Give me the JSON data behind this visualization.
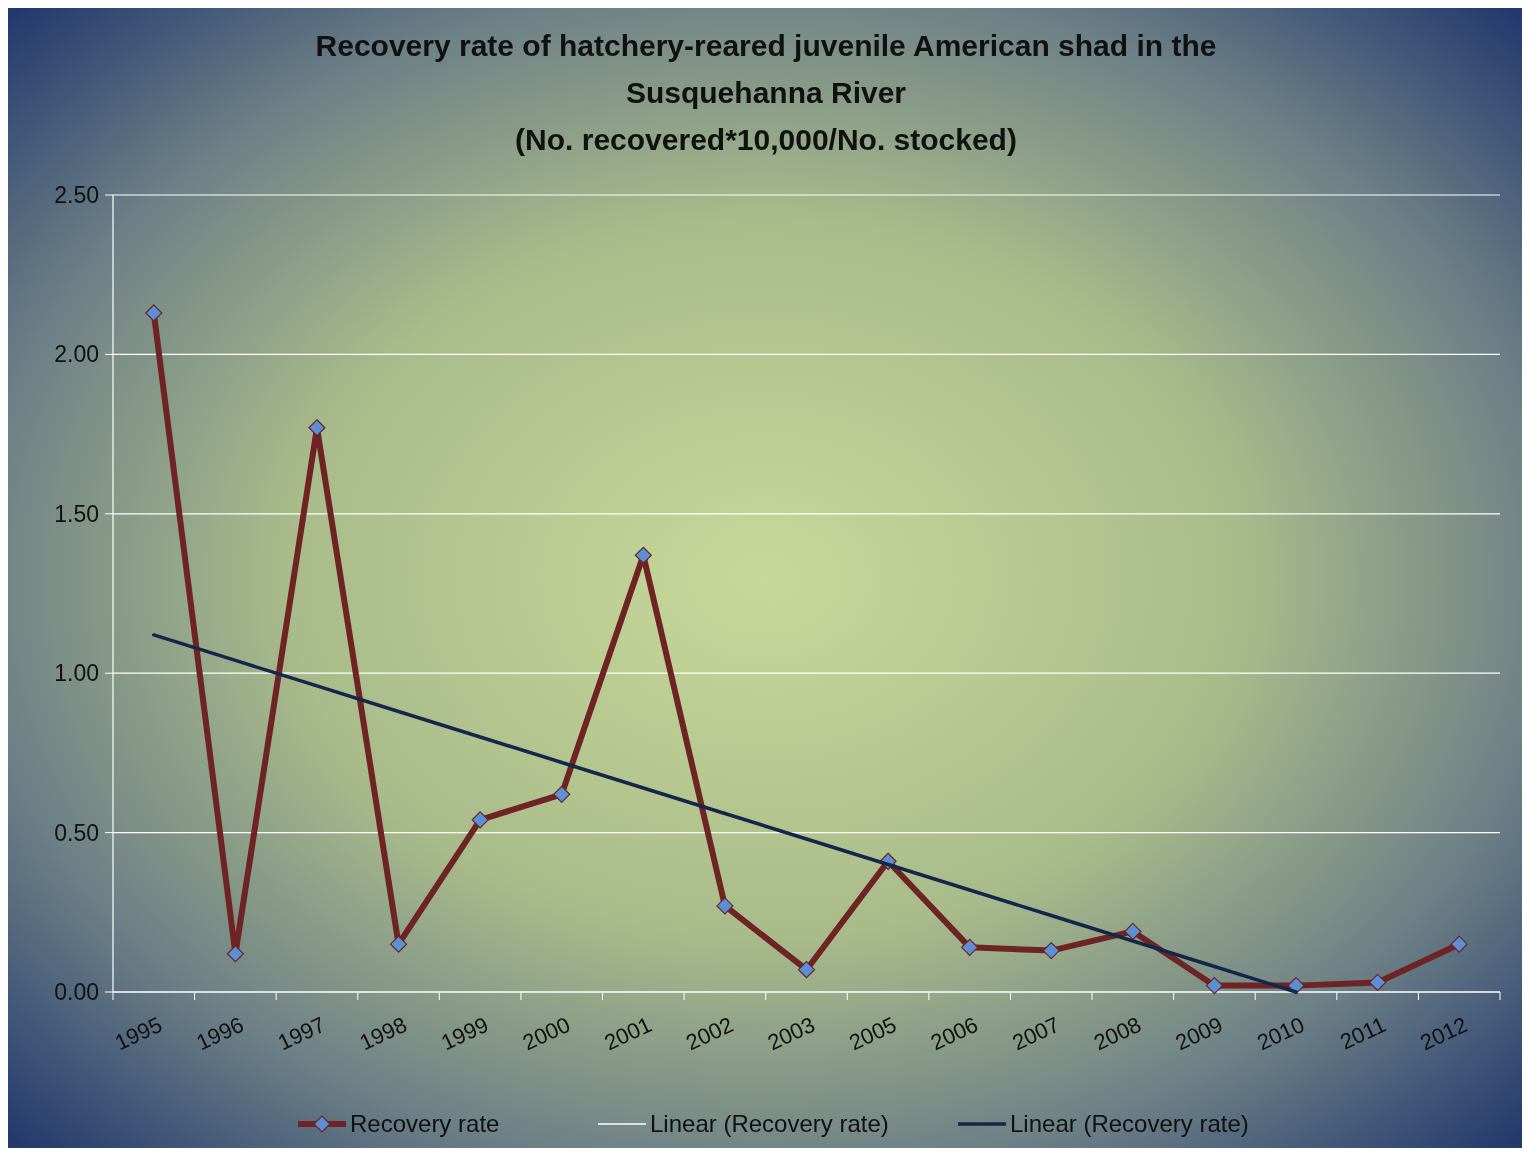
{
  "chart_data": {
    "type": "line",
    "title": "Recovery rate of hatchery-reared juvenile American shad in the Susquehanna River",
    "subtitle": "(No. recovered*10,000/No. stocked)",
    "categories": [
      "1995",
      "1996",
      "1997",
      "1998",
      "1999",
      "2000",
      "2001",
      "2002",
      "2003",
      "2005",
      "2006",
      "2007",
      "2008",
      "2009",
      "2010",
      "2011",
      "2012"
    ],
    "series": [
      {
        "name": "Recovery rate",
        "color": "#6e2424",
        "marker": "diamond",
        "values": [
          2.13,
          0.12,
          1.77,
          0.15,
          0.54,
          0.62,
          1.37,
          0.27,
          0.07,
          0.41,
          0.14,
          0.13,
          0.19,
          0.02,
          0.02,
          0.03,
          0.15
        ]
      },
      {
        "name": "Linear (Recovery rate)",
        "color": "#ffffff",
        "values": [
          null,
          null,
          null,
          null,
          null,
          null,
          null,
          null,
          null,
          null,
          null,
          null,
          null,
          null,
          null,
          null,
          null
        ]
      },
      {
        "name": "Linear (Recovery rate)",
        "color": "#14264a",
        "values": [
          1.12,
          1.04,
          0.96,
          0.88,
          0.8,
          0.72,
          0.64,
          0.56,
          0.48,
          0.4,
          0.32,
          0.24,
          0.16,
          0.08,
          0.0,
          null,
          null
        ]
      }
    ],
    "ylim": [
      0,
      2.5
    ],
    "yticks": [
      {
        "value": 0,
        "label": "0.00"
      },
      {
        "value": 0.5,
        "label": "0.50"
      },
      {
        "value": 1,
        "label": "1.00"
      },
      {
        "value": 1.5,
        "label": "1.50"
      },
      {
        "value": 2,
        "label": "2.00"
      },
      {
        "value": 2.5,
        "label": "2.50"
      }
    ],
    "grid": "y",
    "legend": "bottom",
    "line_style": "solid"
  }
}
